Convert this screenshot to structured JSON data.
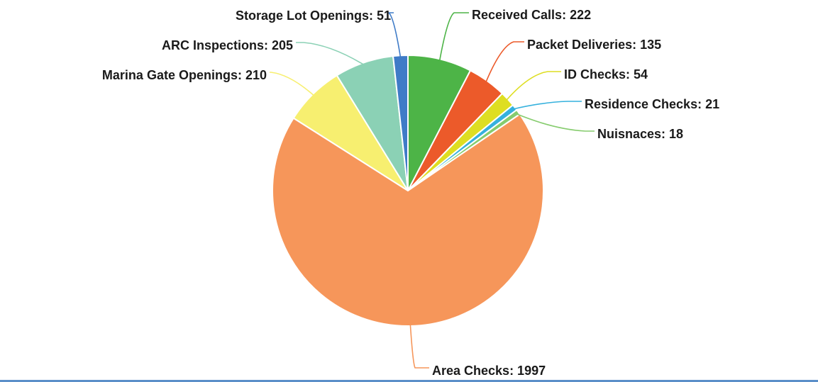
{
  "chart_data": {
    "type": "pie",
    "title": "",
    "start_angle_deg": 0,
    "direction": "clockwise",
    "slices": [
      {
        "label": "Received Calls",
        "value": 222,
        "display": "Received Calls: 222",
        "color": "#4db447"
      },
      {
        "label": "Packet Deliveries",
        "value": 135,
        "display": "Packet Deliveries: 135",
        "color": "#ec5a2a"
      },
      {
        "label": "ID Checks",
        "value": 54,
        "display": "ID Checks: 54",
        "color": "#dede22"
      },
      {
        "label": "Residence Checks",
        "value": 21,
        "display": "Residence Checks: 21",
        "color": "#35b1dd"
      },
      {
        "label": "Nuisnaces",
        "value": 18,
        "display": "Nuisnaces: 18",
        "color": "#86cc6e"
      },
      {
        "label": "Area Checks",
        "value": 1997,
        "display": "Area Checks: 1997",
        "color": "#f6965a"
      },
      {
        "label": "Marina Gate Openings",
        "value": 210,
        "display": "Marina Gate Openings: 210",
        "color": "#f7ef70"
      },
      {
        "label": "ARC Inspections",
        "value": 205,
        "display": "ARC Inspections: 205",
        "color": "#8bd1b5"
      },
      {
        "label": "Storage Lot Openings",
        "value": 51,
        "display": "Storage Lot Openings: 51",
        "color": "#3f7bc7"
      }
    ],
    "legend": "none",
    "data_labels": "outside-with-leader-lines"
  }
}
